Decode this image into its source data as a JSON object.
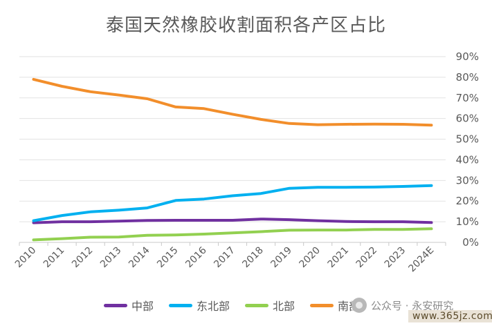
{
  "chart_data": {
    "type": "line",
    "title": "泰国天然橡胶收割面积各产区占比",
    "categories": [
      "2010",
      "2011",
      "2012",
      "2013",
      "2014",
      "2015",
      "2016",
      "2017",
      "2018",
      "2019",
      "2020",
      "2021",
      "2022",
      "2023",
      "2024E"
    ],
    "y_axis_side": "right",
    "ylim": [
      0,
      90
    ],
    "yticks": [
      "0%",
      "10%",
      "20%",
      "30%",
      "40%",
      "50%",
      "60%",
      "70%",
      "80%",
      "90%"
    ],
    "grid": "horizontal",
    "legend_position": "bottom",
    "series": [
      {
        "name": "中部",
        "color": "#7030A0",
        "values": [
          9.5,
          10,
          10,
          10.3,
          10.6,
          10.7,
          10.7,
          10.7,
          11.3,
          11.0,
          10.5,
          10.1,
          10.0,
          10.0,
          9.6
        ]
      },
      {
        "name": "东北部",
        "color": "#00B0F0",
        "values": [
          10.5,
          13,
          14.8,
          15.6,
          16.7,
          20.3,
          21.0,
          22.6,
          23.7,
          26.2,
          26.7,
          26.7,
          26.8,
          27.1,
          27.5
        ]
      },
      {
        "name": "北部",
        "color": "#92D050",
        "values": [
          1.2,
          1.8,
          2.5,
          2.6,
          3.4,
          3.6,
          4.0,
          4.6,
          5.2,
          5.9,
          6.0,
          6.0,
          6.3,
          6.3,
          6.6
        ]
      },
      {
        "name": "南部",
        "color": "#F28E2B",
        "values": [
          79,
          75.6,
          73,
          71.4,
          69.6,
          65.6,
          64.8,
          62.1,
          59.6,
          57.6,
          57.0,
          57.2,
          57.3,
          57.2,
          56.8
        ]
      }
    ]
  },
  "watermark": {
    "text": "公众号 · 永安研究",
    "site": "www.365jz.com"
  }
}
